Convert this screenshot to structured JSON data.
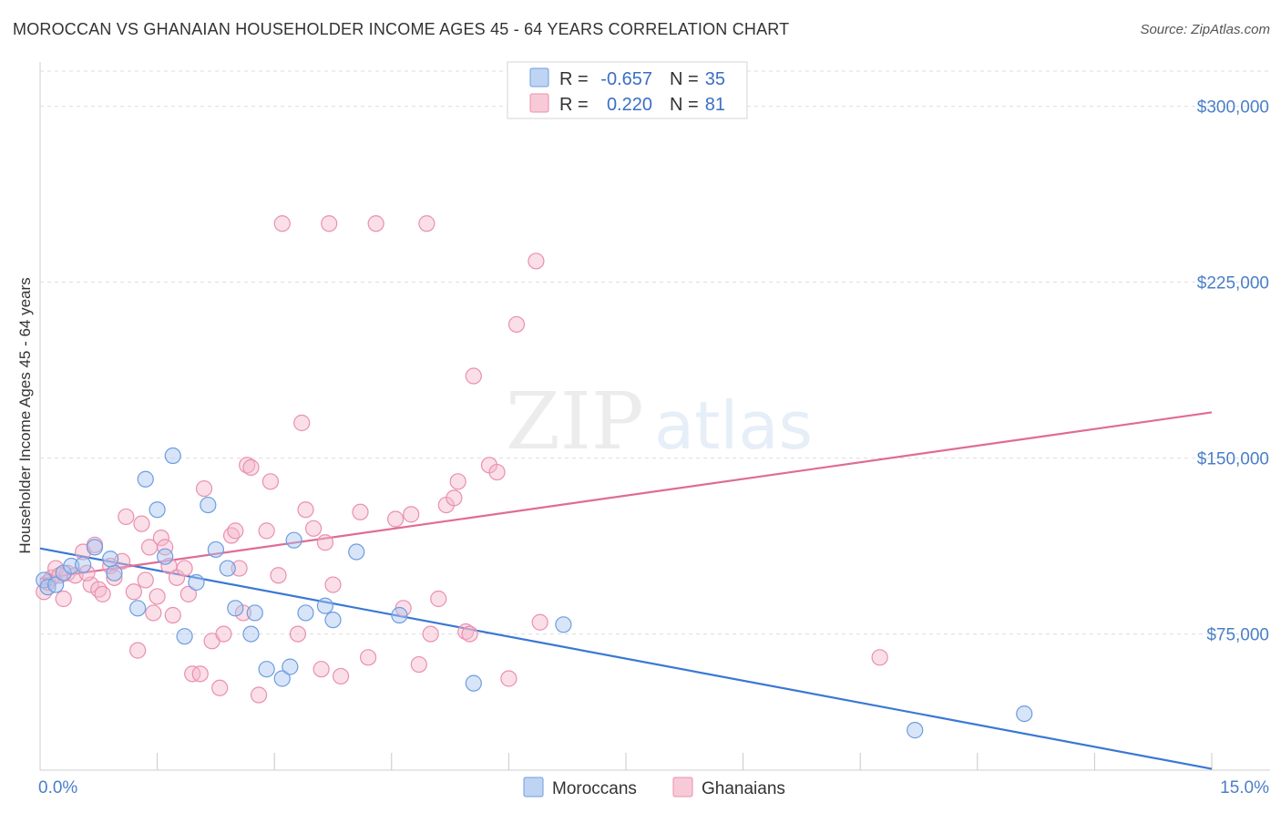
{
  "title": "MOROCCAN VS GHANAIAN HOUSEHOLDER INCOME AGES 45 - 64 YEARS CORRELATION CHART",
  "source": "Source: ZipAtlas.com",
  "watermark": {
    "zip": "ZIP",
    "atlas": "atlas"
  },
  "colors": {
    "moroccan_fill": "#a9c6ef",
    "moroccan_stroke": "#6d9de0",
    "moroccan_line": "#3a78d4",
    "ghanaian_fill": "#f5b8cb",
    "ghanaian_stroke": "#eb8fae",
    "ghanaian_line": "#e06b96",
    "tick_label": "#4a7fc8",
    "grid": "#dddddd"
  },
  "legend": {
    "rows": [
      {
        "r_label": "R =",
        "r_value": "-0.657",
        "n_label": "N =",
        "n_value": "35"
      },
      {
        "r_label": "R =",
        "r_value": "0.220",
        "n_label": "N =",
        "n_value": "81"
      }
    ]
  },
  "chart_data": {
    "type": "scatter",
    "title": "MOROCCAN VS GHANAIAN HOUSEHOLDER INCOME AGES 45 - 64 YEARS CORRELATION CHART",
    "xlabel": "",
    "ylabel": "Householder Income Ages 45 - 64 years",
    "xlim": [
      0,
      15
    ],
    "ylim": [
      15000,
      315000
    ],
    "x_tick_labels": [
      "0.0%",
      "15.0%"
    ],
    "y_ticks": [
      75000,
      150000,
      225000,
      300000
    ],
    "y_tick_labels": [
      "$75,000",
      "$150,000",
      "$225,000",
      "$300,000"
    ],
    "grid": true,
    "legend_position": "top-center",
    "series": [
      {
        "name": "Moroccans",
        "r": -0.657,
        "n": 35,
        "trend": {
          "x": [
            0,
            15
          ],
          "y": [
            111500,
            17500
          ]
        },
        "points": [
          [
            0.05,
            98000
          ],
          [
            0.1,
            95000
          ],
          [
            0.2,
            96000
          ],
          [
            0.3,
            101000
          ],
          [
            0.4,
            104000
          ],
          [
            0.55,
            104500
          ],
          [
            0.7,
            112000
          ],
          [
            0.95,
            101000
          ],
          [
            0.9,
            107000
          ],
          [
            1.25,
            86000
          ],
          [
            1.35,
            141000
          ],
          [
            1.5,
            128000
          ],
          [
            1.6,
            108000
          ],
          [
            1.7,
            151000
          ],
          [
            1.85,
            74000
          ],
          [
            2.0,
            97000
          ],
          [
            2.15,
            130000
          ],
          [
            2.25,
            111000
          ],
          [
            2.4,
            103000
          ],
          [
            2.5,
            86000
          ],
          [
            2.7,
            75000
          ],
          [
            2.75,
            84000
          ],
          [
            2.9,
            60000
          ],
          [
            3.1,
            56000
          ],
          [
            3.2,
            61000
          ],
          [
            3.25,
            115000
          ],
          [
            3.4,
            84000
          ],
          [
            3.65,
            87000
          ],
          [
            3.75,
            81000
          ],
          [
            4.05,
            110000
          ],
          [
            4.6,
            83000
          ],
          [
            5.55,
            54000
          ],
          [
            6.7,
            79000
          ],
          [
            11.2,
            34000
          ],
          [
            12.6,
            41000
          ]
        ]
      },
      {
        "name": "Ghanaians",
        "r": 0.22,
        "n": 81,
        "trend": {
          "x": [
            0,
            15
          ],
          "y": [
            98500,
            169500
          ]
        },
        "points": [
          [
            0.05,
            93000
          ],
          [
            0.1,
            97000
          ],
          [
            0.15,
            99000
          ],
          [
            0.2,
            103000
          ],
          [
            0.3,
            90000
          ],
          [
            0.35,
            101000
          ],
          [
            0.45,
            100000
          ],
          [
            0.55,
            110000
          ],
          [
            0.65,
            96000
          ],
          [
            0.7,
            113000
          ],
          [
            0.75,
            94000
          ],
          [
            0.8,
            92000
          ],
          [
            0.9,
            104000
          ],
          [
            0.95,
            99000
          ],
          [
            1.1,
            125000
          ],
          [
            1.2,
            93000
          ],
          [
            1.25,
            68000
          ],
          [
            1.3,
            122000
          ],
          [
            1.35,
            98000
          ],
          [
            1.4,
            112000
          ],
          [
            1.45,
            84000
          ],
          [
            1.5,
            91000
          ],
          [
            1.55,
            116000
          ],
          [
            1.6,
            112000
          ],
          [
            1.65,
            104000
          ],
          [
            1.7,
            83000
          ],
          [
            1.75,
            99000
          ],
          [
            1.85,
            103000
          ],
          [
            1.9,
            92000
          ],
          [
            1.95,
            58000
          ],
          [
            2.05,
            58000
          ],
          [
            2.1,
            137000
          ],
          [
            2.2,
            72000
          ],
          [
            2.3,
            52000
          ],
          [
            2.35,
            75000
          ],
          [
            2.45,
            117000
          ],
          [
            2.5,
            119000
          ],
          [
            2.55,
            103000
          ],
          [
            2.6,
            84000
          ],
          [
            2.65,
            147000
          ],
          [
            2.7,
            146000
          ],
          [
            2.8,
            49000
          ],
          [
            2.9,
            119000
          ],
          [
            2.95,
            140000
          ],
          [
            3.05,
            100000
          ],
          [
            3.1,
            250000
          ],
          [
            3.3,
            75000
          ],
          [
            3.35,
            165000
          ],
          [
            3.4,
            128000
          ],
          [
            3.5,
            120000
          ],
          [
            3.6,
            60000
          ],
          [
            3.65,
            114000
          ],
          [
            3.7,
            250000
          ],
          [
            3.75,
            96000
          ],
          [
            3.85,
            57000
          ],
          [
            4.1,
            127000
          ],
          [
            4.2,
            65000
          ],
          [
            4.3,
            250000
          ],
          [
            4.55,
            124000
          ],
          [
            4.65,
            86000
          ],
          [
            4.75,
            126000
          ],
          [
            4.85,
            62000
          ],
          [
            4.95,
            250000
          ],
          [
            5.0,
            75000
          ],
          [
            5.1,
            90000
          ],
          [
            5.2,
            130000
          ],
          [
            5.3,
            133000
          ],
          [
            5.35,
            140000
          ],
          [
            5.45,
            76000
          ],
          [
            5.5,
            75000
          ],
          [
            5.55,
            185000
          ],
          [
            5.75,
            147000
          ],
          [
            5.85,
            144000
          ],
          [
            6.0,
            56000
          ],
          [
            6.1,
            207000
          ],
          [
            6.35,
            234000
          ],
          [
            6.4,
            80000
          ],
          [
            10.75,
            65000
          ],
          [
            0.25,
            100000
          ],
          [
            1.05,
            106000
          ],
          [
            0.6,
            101000
          ]
        ]
      }
    ]
  }
}
